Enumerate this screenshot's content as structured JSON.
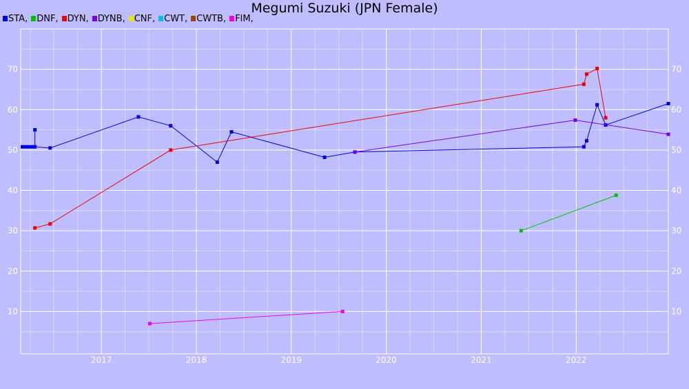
{
  "chart_data": {
    "type": "line",
    "title": "Megumi Suzuki (JPN Female)",
    "xlim": [
      2016.15,
      2022.97
    ],
    "ylim": [
      -0.5,
      80
    ],
    "x_ticks": [
      2017,
      2018,
      2019,
      2020,
      2021,
      2022
    ],
    "y_ticks": [
      10,
      20,
      30,
      40,
      50,
      60,
      70
    ],
    "grid": true,
    "legend_position": "top-left",
    "legend": [
      {
        "name": "STA,",
        "color": "#0000dd"
      },
      {
        "name": "DNF,",
        "color": "#00c000"
      },
      {
        "name": "DYN,",
        "color": "#ee0000"
      },
      {
        "name": "DYNB,",
        "color": "#7a00dd"
      },
      {
        "name": "CNF,",
        "color": "#e8e800"
      },
      {
        "name": "CWT,",
        "color": "#00c0e0"
      },
      {
        "name": "CWTB,",
        "color": "#a04000"
      },
      {
        "name": "FIM,",
        "color": "#ee00ee"
      }
    ],
    "series": [
      {
        "legend": "STA,",
        "color": "#0000dd",
        "points": [
          [
            2016.3,
            55
          ],
          [
            2016.3,
            50.8
          ],
          [
            2016.46,
            50.5
          ],
          [
            2017.39,
            58.2
          ],
          [
            2017.73,
            56
          ],
          [
            2018.22,
            47
          ],
          [
            2018.37,
            54.5
          ],
          [
            2019.35,
            48.2
          ],
          [
            2019.67,
            49.5
          ],
          [
            2022.08,
            50.8
          ],
          [
            2022.11,
            52.3
          ],
          [
            2022.22,
            61.2
          ],
          [
            2022.31,
            56.2
          ],
          [
            2022.97,
            61.5
          ]
        ]
      },
      {
        "legend": "DNF,",
        "color": "#00c000",
        "points": [
          [
            2021.42,
            30
          ],
          [
            2022.42,
            38.8
          ]
        ]
      },
      {
        "legend": "DYN,",
        "color": "#ee0000",
        "points": [
          [
            2016.3,
            30.7
          ],
          [
            2016.46,
            31.7
          ],
          [
            2017.73,
            50
          ],
          [
            2022.08,
            66.3
          ],
          [
            2022.11,
            68.8
          ],
          [
            2022.22,
            70.2
          ],
          [
            2022.31,
            58
          ]
        ]
      },
      {
        "legend": "DYNB,",
        "color": "#7a00dd",
        "points": [
          [
            2019.67,
            49.5
          ],
          [
            2021.99,
            57.4
          ],
          [
            2022.97,
            53.9
          ]
        ]
      },
      {
        "legend": "FIM,",
        "color": "#ee00ee",
        "points": [
          [
            2017.51,
            7
          ],
          [
            2019.54,
            10
          ]
        ]
      }
    ]
  }
}
